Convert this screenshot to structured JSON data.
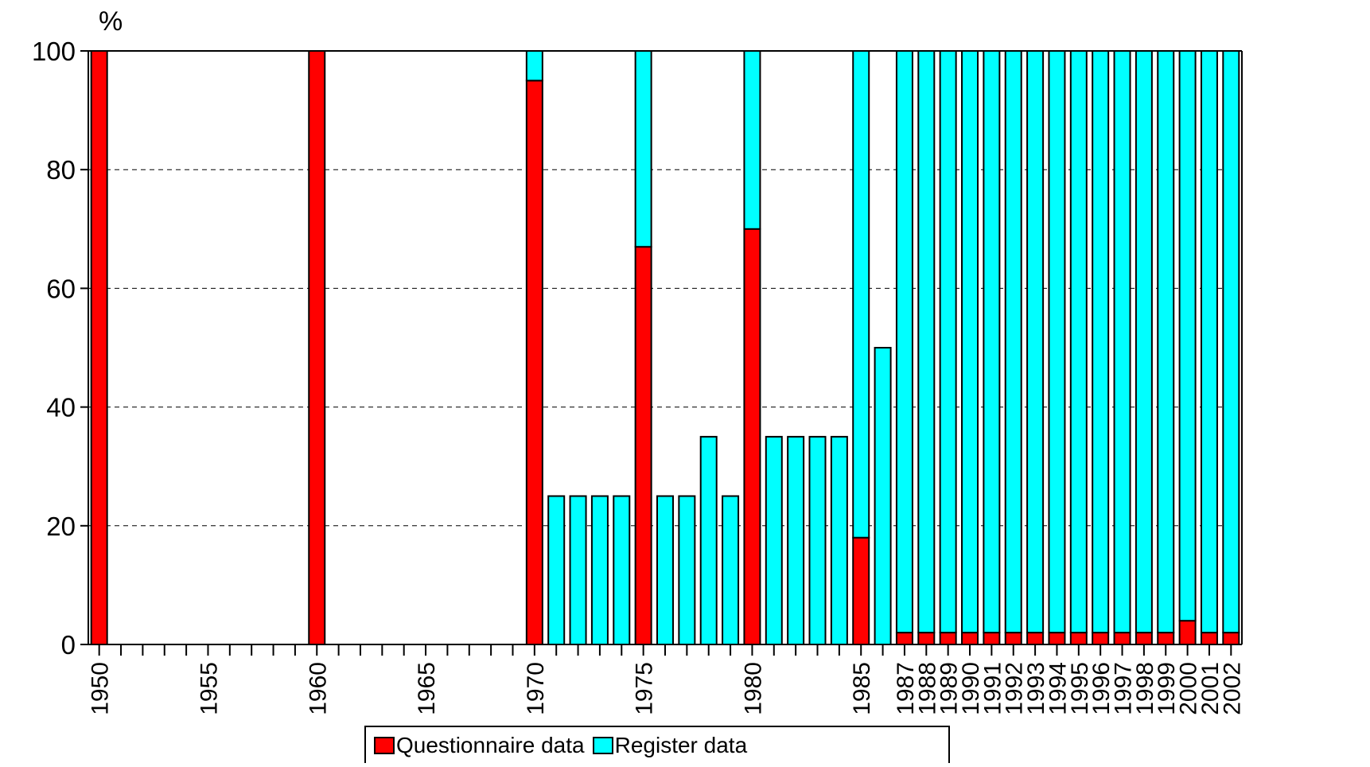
{
  "chart_data": {
    "type": "bar",
    "stacked": true,
    "title": "",
    "ylabel": "%",
    "xlabel": "",
    "ylim": [
      0,
      100
    ],
    "yticks": [
      0,
      20,
      40,
      60,
      80,
      100
    ],
    "grid": "dashed horizontal",
    "legend_position": "bottom",
    "categories": [
      "1950",
      "1951",
      "1952",
      "1953",
      "1954",
      "1955",
      "1956",
      "1957",
      "1958",
      "1959",
      "1960",
      "1961",
      "1962",
      "1963",
      "1964",
      "1965",
      "1966",
      "1967",
      "1968",
      "1969",
      "1970",
      "1971",
      "1972",
      "1973",
      "1974",
      "1975",
      "1976",
      "1977",
      "1978",
      "1979",
      "1980",
      "1981",
      "1982",
      "1983",
      "1984",
      "1985",
      "1986",
      "1987",
      "1988",
      "1989",
      "1990",
      "1991",
      "1992",
      "1993",
      "1994",
      "1995",
      "1996",
      "1997",
      "1998",
      "1999",
      "2000",
      "2001",
      "2002"
    ],
    "x_tick_labels": [
      "1950",
      "",
      "",
      "",
      "",
      "1955",
      "",
      "",
      "",
      "",
      "1960",
      "",
      "",
      "",
      "",
      "1965",
      "",
      "",
      "",
      "",
      "1970",
      "",
      "",
      "",
      "",
      "1975",
      "",
      "",
      "",
      "",
      "1980",
      "",
      "",
      "",
      "",
      "1985",
      "",
      "1987",
      "1988",
      "1989",
      "1990",
      "1991",
      "1992",
      "1993",
      "1994",
      "1995",
      "1996",
      "1997",
      "1998",
      "1999",
      "2000",
      "2001",
      "2002"
    ],
    "series": [
      {
        "name": "Questionnaire data",
        "color": "#ff0000",
        "values": [
          100,
          0,
          0,
          0,
          0,
          0,
          0,
          0,
          0,
          0,
          100,
          0,
          0,
          0,
          0,
          0,
          0,
          0,
          0,
          0,
          95,
          0,
          0,
          0,
          0,
          67,
          0,
          0,
          0,
          0,
          70,
          0,
          0,
          0,
          0,
          18,
          0,
          2,
          2,
          2,
          2,
          2,
          2,
          2,
          2,
          2,
          2,
          2,
          2,
          2,
          4,
          2,
          2
        ]
      },
      {
        "name": "Register data",
        "color": "#00ffff",
        "values": [
          0,
          0,
          0,
          0,
          0,
          0,
          0,
          0,
          0,
          0,
          0,
          0,
          0,
          0,
          0,
          0,
          0,
          0,
          0,
          0,
          5,
          25,
          25,
          25,
          25,
          33,
          25,
          25,
          35,
          25,
          30,
          35,
          35,
          35,
          35,
          82,
          50,
          98,
          98,
          98,
          98,
          98,
          98,
          98,
          98,
          98,
          98,
          98,
          98,
          98,
          96,
          98,
          98
        ]
      }
    ]
  }
}
